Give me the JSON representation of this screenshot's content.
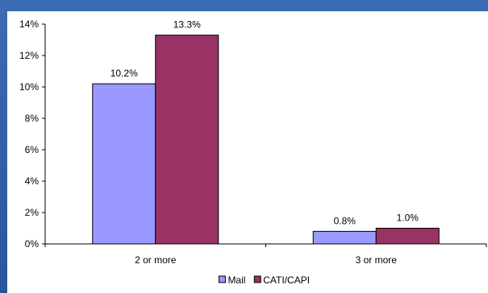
{
  "chart_data": {
    "type": "bar",
    "categories": [
      "2 or more",
      "3 or more"
    ],
    "series": [
      {
        "name": "Mail",
        "values": [
          10.2,
          0.8
        ],
        "color": "#9999ff"
      },
      {
        "name": "CATI/CAPI",
        "values": [
          13.3,
          1.0
        ],
        "color": "#993366"
      }
    ],
    "data_labels": [
      [
        "10.2%",
        "0.8%"
      ],
      [
        "13.3%",
        "1.0%"
      ]
    ],
    "yticks": [
      "0%",
      "2%",
      "4%",
      "6%",
      "8%",
      "10%",
      "12%",
      "14%"
    ],
    "ylim": [
      0,
      14
    ],
    "legend_position": "bottom",
    "grid": false
  }
}
